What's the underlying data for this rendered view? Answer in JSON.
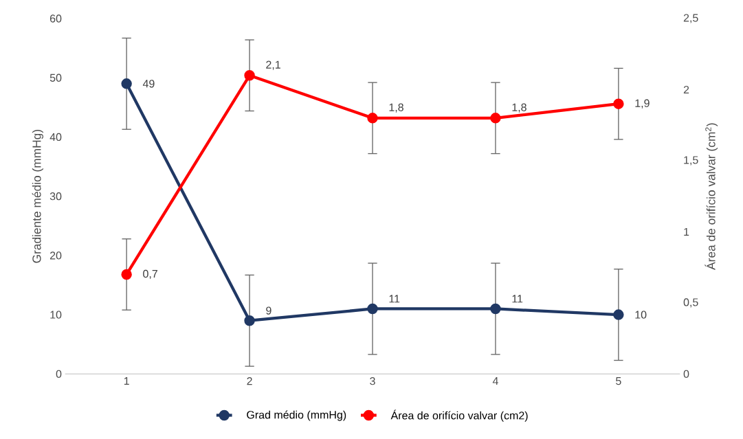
{
  "chart_data": {
    "type": "line",
    "categories": [
      "1",
      "2",
      "3",
      "4",
      "5"
    ],
    "ylabel": "Gradiente médio (mmHg)",
    "y2label": "Área  de orifício valvar  (cm$^{2}$)",
    "ylim": [
      0,
      60
    ],
    "yticks": [
      0,
      10,
      20,
      30,
      40,
      50,
      60
    ],
    "y2lim": [
      0,
      2.5
    ],
    "y2ticks": [
      0,
      {
        "value": 0.5,
        "label": "0,5"
      },
      1,
      {
        "value": 1.5,
        "label": "1,5"
      },
      2,
      {
        "value": 2.5,
        "label": "2,5"
      }
    ],
    "series": [
      {
        "name": "Grad médio (mmHg)",
        "color": "#203864",
        "values": [
          49,
          9,
          11,
          11,
          10
        ],
        "errors": [
          7.7,
          7.7,
          7.7,
          7.7,
          7.7
        ],
        "value_labels": [
          "49",
          "9",
          "11",
          "11",
          "10"
        ]
      },
      {
        "name": "Área de orifício valvar (cm2)",
        "color": "#ff0000",
        "axis": "y2",
        "values": [
          0.7,
          2.1,
          1.8,
          1.8,
          1.9
        ],
        "errors": [
          0.25,
          0.25,
          0.25,
          0.25,
          0.25
        ],
        "value_labels": [
          "0,7",
          "2,1",
          "1,8",
          "1,8",
          "1,9"
        ]
      }
    ],
    "marker": "circle",
    "grid": false,
    "legend": "bottom"
  }
}
